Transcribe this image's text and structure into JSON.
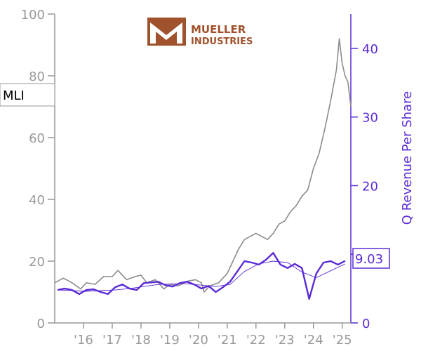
{
  "logo": {
    "line1": "MUELLER",
    "line2": "INDUSTRIES",
    "color": "#a0522d"
  },
  "chart_data": {
    "type": "line",
    "ticker": "MLI",
    "left_axis": {
      "ticks": [
        "0",
        "20",
        "40",
        "60",
        "80",
        "100"
      ],
      "range": [
        0,
        100
      ],
      "color": "#999999"
    },
    "right_axis": {
      "label": "Q Revenue Per Share",
      "ticks": [
        "0",
        "10",
        "20",
        "30",
        "40"
      ],
      "range": [
        0,
        45
      ],
      "color": "#5b2bd6"
    },
    "x_axis": {
      "tick_labels": [
        "'16",
        "'17",
        "'18",
        "'19",
        "'20",
        "'21",
        "'22",
        "'23",
        "'24",
        "'25"
      ],
      "range": [
        2015.0,
        2025.3
      ]
    },
    "last_value_label": "9.03",
    "series": [
      {
        "name": "MLI",
        "axis": "left",
        "color": "#8c8c8c",
        "x": [
          2015.0,
          2015.3,
          2015.6,
          2015.9,
          2016.1,
          2016.4,
          2016.7,
          2017.0,
          2017.2,
          2017.5,
          2017.8,
          2018.0,
          2018.2,
          2018.5,
          2018.8,
          2019.0,
          2019.3,
          2019.6,
          2019.9,
          2020.1,
          2020.2,
          2020.4,
          2020.7,
          2021.0,
          2021.2,
          2021.4,
          2021.6,
          2021.8,
          2022.0,
          2022.2,
          2022.4,
          2022.6,
          2022.8,
          2023.0,
          2023.2,
          2023.4,
          2023.6,
          2023.8,
          2024.0,
          2024.2,
          2024.4,
          2024.6,
          2024.8,
          2024.9,
          2025.0,
          2025.1,
          2025.2,
          2025.3
        ],
        "values": [
          13,
          14.5,
          13,
          11,
          13,
          12.5,
          15,
          15,
          17,
          14,
          15,
          15.5,
          13,
          14,
          11,
          12.5,
          12,
          13.5,
          14,
          13,
          10,
          12,
          13,
          16,
          20,
          24,
          27,
          28,
          29,
          28,
          27,
          29,
          32,
          33,
          36,
          38,
          41,
          43,
          50,
          55,
          63,
          72,
          82,
          92,
          84,
          80,
          78,
          70
        ]
      },
      {
        "name": "Q Revenue Per Share",
        "axis": "right",
        "color": "#5b2bd6",
        "x": [
          2015.1,
          2015.35,
          2015.6,
          2015.85,
          2016.1,
          2016.35,
          2016.6,
          2016.85,
          2017.1,
          2017.35,
          2017.6,
          2017.85,
          2018.1,
          2018.35,
          2018.6,
          2018.85,
          2019.1,
          2019.35,
          2019.6,
          2019.85,
          2020.1,
          2020.35,
          2020.6,
          2020.85,
          2021.1,
          2021.35,
          2021.6,
          2021.85,
          2022.1,
          2022.35,
          2022.6,
          2022.85,
          2023.1,
          2023.35,
          2023.6,
          2023.85,
          2024.1,
          2024.35,
          2024.6,
          2024.85,
          2025.1
        ],
        "values": [
          4.8,
          5.0,
          4.8,
          4.2,
          4.8,
          4.9,
          4.5,
          4.2,
          5.2,
          5.6,
          5.0,
          4.8,
          5.8,
          5.9,
          6.0,
          5.5,
          5.3,
          5.8,
          6.0,
          5.6,
          5.0,
          5.4,
          4.5,
          5.2,
          6.0,
          7.5,
          9.0,
          8.8,
          8.5,
          9.2,
          10.2,
          8.5,
          8.0,
          8.6,
          8.0,
          3.5,
          7.2,
          8.8,
          9.0,
          8.5,
          9.03
        ]
      },
      {
        "name": "Q Revenue Per Share (trend)",
        "axis": "right",
        "color": "#5b2bd6",
        "x": [
          2015.1,
          2015.6,
          2016.1,
          2016.6,
          2017.1,
          2017.6,
          2018.1,
          2018.6,
          2019.1,
          2019.6,
          2020.1,
          2020.6,
          2021.1,
          2021.6,
          2022.1,
          2022.6,
          2023.1,
          2023.6,
          2024.1,
          2024.6,
          2025.1
        ],
        "values": [
          4.8,
          4.7,
          4.6,
          4.7,
          4.8,
          5.0,
          5.3,
          5.6,
          5.7,
          5.7,
          5.5,
          5.3,
          5.6,
          7.5,
          8.6,
          9.0,
          8.8,
          7.4,
          6.6,
          7.6,
          8.6
        ]
      }
    ]
  }
}
